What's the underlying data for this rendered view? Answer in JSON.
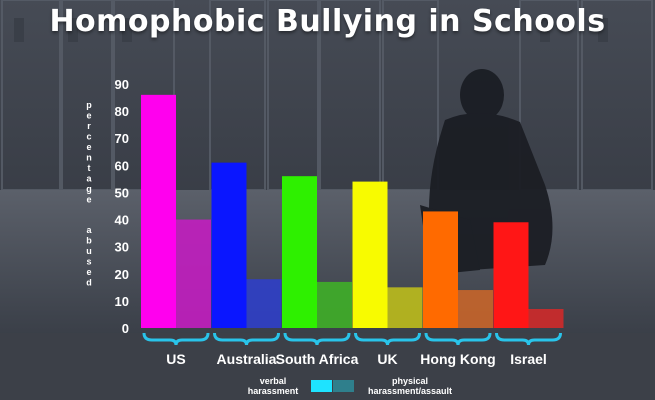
{
  "chart_data": {
    "type": "bar",
    "title": "Homophobic Bullying in Schools",
    "ylabel": "percentage abused",
    "ylabel_lines": [
      "percentage",
      "abused"
    ],
    "categories": [
      "US",
      "Australia",
      "South Africa",
      "UK",
      "Hong Kong",
      "Israel"
    ],
    "series": [
      {
        "name": "verbal harassment",
        "values": [
          86,
          61,
          56,
          54,
          43,
          39
        ]
      },
      {
        "name": "physical harassment/assault",
        "values": [
          40,
          18,
          17,
          15,
          14,
          7
        ]
      }
    ],
    "ylim": [
      0,
      90
    ],
    "yticks": [
      0,
      10,
      20,
      30,
      40,
      50,
      60,
      70,
      80,
      90
    ],
    "grid": false,
    "legend_position": "bottom-center",
    "category_colors": [
      [
        "#ff00ee",
        "#c21ec0"
      ],
      [
        "#0a16ff",
        "#2f3fc8"
      ],
      [
        "#2ef000",
        "#3faf28"
      ],
      [
        "#f8fb00",
        "#bdbd1c"
      ],
      [
        "#ff6a00",
        "#c8652a"
      ],
      [
        "#ff1616",
        "#cf2a2a"
      ]
    ],
    "legend_colors": [
      "#1ee3ff",
      "#2f7f8c"
    ]
  },
  "legend": {
    "verbal_lines": [
      "verbal",
      "harassment"
    ],
    "physical_lines": [
      "physical",
      "harassment/assault"
    ]
  }
}
